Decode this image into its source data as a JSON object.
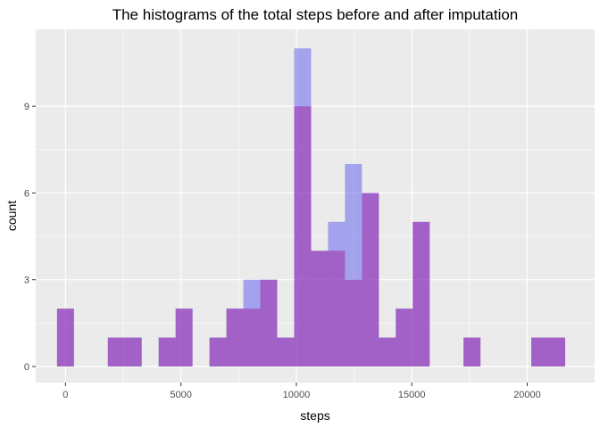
{
  "chart_data": {
    "type": "histogram",
    "title": "The histograms of the total steps before and after imputation",
    "xlabel": "steps",
    "ylabel": "count",
    "xlim": [
      -1290,
      22920
    ],
    "ylim": [
      -0.555,
      11.656
    ],
    "x_ticks": [
      0,
      5000,
      10000,
      15000,
      20000
    ],
    "x_tick_labels": [
      "0",
      "5000",
      "10000",
      "15000",
      "20000"
    ],
    "y_ticks": [
      0,
      3,
      6,
      9
    ],
    "y_tick_labels": [
      "0",
      "3",
      "6",
      "9"
    ],
    "grid": true,
    "legend": "none",
    "bin_width": 733.68,
    "bin_centers": [
      0,
      733.68,
      1467.36,
      2201.04,
      2934.72,
      3668.4,
      4402.08,
      5135.76,
      5869.44,
      6603.12,
      7336.8,
      8070.48,
      8804.16,
      9537.84,
      10271.52,
      11005.2,
      11738.88,
      12472.56,
      13206.24,
      13939.92,
      14673.6,
      15407.28,
      16140.96,
      16874.64,
      17608.32,
      18342,
      19075.68,
      19809.36,
      20543.04,
      21276.72
    ],
    "series": [
      {
        "color": "#5a5af0",
        "opacity": 0.5,
        "values": [
          2,
          0,
          0,
          1,
          1,
          0,
          1,
          2,
          0,
          1,
          2,
          3,
          3,
          1,
          11,
          4,
          5,
          7,
          6,
          1,
          2,
          5,
          0,
          0,
          1,
          0,
          0,
          0,
          1,
          1
        ]
      },
      {
        "color": "#a020a0",
        "opacity": 0.5,
        "values": [
          2,
          0,
          0,
          1,
          1,
          0,
          1,
          2,
          0,
          1,
          2,
          2,
          3,
          1,
          9,
          4,
          4,
          3,
          6,
          1,
          2,
          5,
          0,
          0,
          1,
          0,
          0,
          0,
          1,
          1
        ]
      }
    ]
  }
}
